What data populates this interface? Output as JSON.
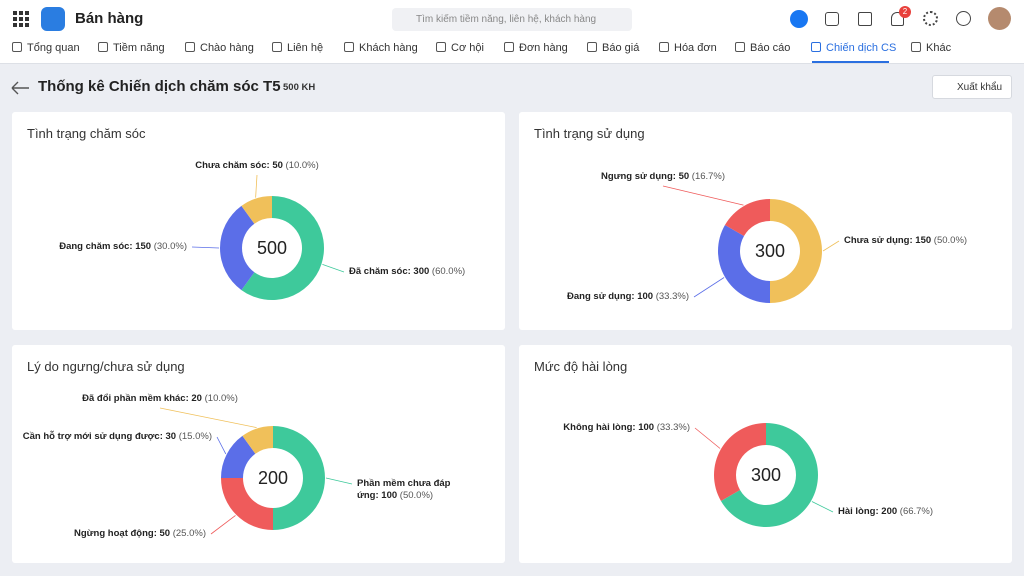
{
  "header": {
    "app_name": "Bán hàng",
    "search_placeholder": "Tìm kiếm tiềm năng, liên hệ, khách hàng",
    "notification_count": "2"
  },
  "nav": [
    "Tổng quan",
    "Tiềm năng",
    "Chào hàng",
    "Liên hệ",
    "Khách hàng",
    "Cơ hội",
    "Đơn hàng",
    "Báo giá",
    "Hóa đơn",
    "Báo cáo",
    "Chiến dịch CS",
    "Khác"
  ],
  "page": {
    "title": "Thống kê Chiến dịch chăm sóc T5",
    "count": "500 KH",
    "export_button": "Xuất khẩu"
  },
  "chart_data": [
    {
      "type": "donut",
      "title": "Tình trạng chăm sóc",
      "total": 500,
      "categories": [
        "Đã chăm sóc:",
        "Đang chăm sóc:",
        "Chưa chăm sóc:"
      ],
      "values": [
        300,
        150,
        50
      ],
      "percent_labels": [
        "(60.0%)",
        "(30.0%)",
        "(10.0%)"
      ],
      "colors": [
        "#3ec99b",
        "#5b6ee8",
        "#f0c05a"
      ]
    },
    {
      "type": "donut",
      "title": "Tình trạng sử dụng",
      "total": 300,
      "categories": [
        "Chưa sử dụng:",
        "Đang sử dụng:",
        "Ngưng sử dụng:"
      ],
      "values": [
        150,
        100,
        50
      ],
      "percent_labels": [
        "(50.0%)",
        "(33.3%)",
        "(16.7%)"
      ],
      "colors": [
        "#f0c05a",
        "#5b6ee8",
        "#ef5b5b"
      ]
    },
    {
      "type": "donut",
      "title": "Lý do ngưng/chưa sử dụng",
      "total": 200,
      "categories": [
        "Phần mềm chưa đáp ứng:",
        "Ngừng hoạt động:",
        "Cần hỗ trợ mới sử dụng được:",
        "Đã đổi phần mềm khác:"
      ],
      "values": [
        100,
        50,
        30,
        20
      ],
      "percent_labels": [
        "(50.0%)",
        "(25.0%)",
        "(15.0%)",
        "(10.0%)"
      ],
      "colors": [
        "#3ec99b",
        "#ef5b5b",
        "#5b6ee8",
        "#f0c05a"
      ]
    },
    {
      "type": "donut",
      "title": "Mức độ hài lòng",
      "total": 300,
      "categories": [
        "Hài lòng:",
        "Không hài lòng:"
      ],
      "values": [
        200,
        100
      ],
      "percent_labels": [
        "(66.7%)",
        "(33.3%)"
      ],
      "colors": [
        "#3ec99b",
        "#ef5b5b"
      ]
    }
  ]
}
